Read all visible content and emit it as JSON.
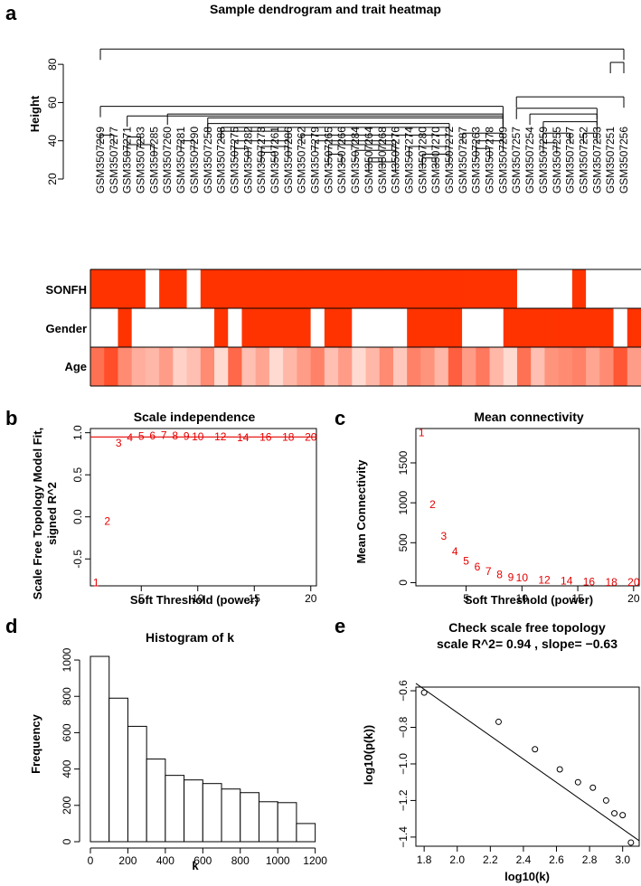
{
  "colors": {
    "red": "#ff3300",
    "line_red": "#e60000",
    "black": "#000000"
  },
  "chart_data": [
    {
      "panel": "a",
      "type": "dendrogram_heatmap",
      "title": "Sample dendrogram and trait heatmap",
      "ylabel": "Height",
      "yticks": [
        20,
        40,
        60,
        80
      ],
      "ylim": [
        20,
        90
      ],
      "leaves": [
        "GSM3507269",
        "GSM3507277",
        "GSM3507271",
        "GSM3507283",
        "GSM3507285",
        "GSM3507260",
        "GSM3507281",
        "GSM3507290",
        "GSM3507258",
        "GSM3507288",
        "GSM3507275",
        "GSM3507282",
        "GSM3507273",
        "GSM3507261",
        "GSM3507286",
        "GSM3507262",
        "GSM3507279",
        "GSM3507265",
        "GSM3507266",
        "GSM3507284",
        "GSM3507264",
        "GSM3507268",
        "GSM3507276",
        "GSM3507274",
        "GSM3507280",
        "GSM3507270",
        "GSM3507272",
        "GSM3507287",
        "GSM3507263",
        "GSM3507278",
        "GSM3507289",
        "GSM3507257",
        "GSM3507254",
        "GSM3507259",
        "GSM3507255",
        "GSM3507267",
        "GSM3507252",
        "GSM3507253",
        "GSM3507251",
        "GSM3507256"
      ],
      "traits": [
        {
          "name": "SONFH",
          "values": [
            1,
            1,
            1,
            1,
            0,
            1,
            1,
            0,
            1,
            1,
            1,
            1,
            1,
            1,
            1,
            1,
            1,
            1,
            1,
            1,
            1,
            1,
            1,
            1,
            1,
            1,
            1,
            1,
            1,
            1,
            1,
            0,
            0,
            0,
            0,
            1,
            0,
            0,
            0,
            0
          ]
        },
        {
          "name": "Gender",
          "values": [
            0,
            0,
            1,
            0,
            0,
            0,
            0,
            0,
            0,
            1,
            0,
            1,
            1,
            1,
            1,
            1,
            0,
            1,
            1,
            0,
            0,
            0,
            0,
            1,
            1,
            1,
            1,
            0,
            0,
            0,
            1,
            1,
            1,
            1,
            1,
            1,
            1,
            1,
            0,
            1
          ]
        },
        {
          "name": "Age",
          "values": [
            0.7,
            0.9,
            0.55,
            0.35,
            0.3,
            0.45,
            0.15,
            0.25,
            0.55,
            0.1,
            0.75,
            0.25,
            0.4,
            0.1,
            0.3,
            0.45,
            0.6,
            0.25,
            0.45,
            0.1,
            0.3,
            0.55,
            0.2,
            0.6,
            0.5,
            0.3,
            0.8,
            0.45,
            0.65,
            0.3,
            0.1,
            0.7,
            0.25,
            0.5,
            0.55,
            0.6,
            0.4,
            0.55,
            0.85,
            0.45
          ]
        }
      ]
    },
    {
      "panel": "b",
      "type": "scatter",
      "title": "Scale independence",
      "xlabel": "Soft Threshold (power)",
      "ylabel": "Scale Free Topology Model Fit, signed R^2",
      "xlim": [
        0.5,
        20.5
      ],
      "ylim": [
        -0.82,
        1.05
      ],
      "xticks": [
        5,
        10,
        15,
        20
      ],
      "yticks": [
        -0.5,
        0.0,
        0.5,
        1.0
      ],
      "hline": 0.95,
      "x": [
        1,
        2,
        3,
        4,
        5,
        6,
        7,
        8,
        9,
        10,
        12,
        14,
        16,
        18,
        20
      ],
      "y": [
        -0.78,
        -0.05,
        0.88,
        0.94,
        0.96,
        0.965,
        0.97,
        0.965,
        0.96,
        0.955,
        0.955,
        0.945,
        0.95,
        0.95,
        0.95
      ]
    },
    {
      "panel": "c",
      "type": "scatter",
      "title": "Mean connectivity",
      "xlabel": "Soft Threshold (power)",
      "ylabel": "Mean Connectivity",
      "xlim": [
        0.5,
        20.5
      ],
      "ylim": [
        -40,
        1930
      ],
      "xticks": [
        5,
        10,
        15,
        20
      ],
      "yticks": [
        0,
        500,
        1000,
        1500
      ],
      "x": [
        1,
        2,
        3,
        4,
        5,
        6,
        7,
        8,
        9,
        10,
        12,
        14,
        16,
        18,
        20
      ],
      "y": [
        1880,
        980,
        580,
        390,
        270,
        195,
        140,
        100,
        70,
        60,
        35,
        20,
        12,
        8,
        4
      ]
    },
    {
      "panel": "d",
      "type": "bar",
      "title": "Histogram of k",
      "xlabel": "k",
      "ylabel": "Frequency",
      "xlim": [
        0,
        1250
      ],
      "ylim": [
        0,
        1050
      ],
      "xticks": [
        0,
        200,
        400,
        600,
        800,
        1000,
        1200
      ],
      "yticks": [
        0,
        200,
        400,
        600,
        800,
        1000
      ],
      "bin_width": 100,
      "bin_starts": [
        0,
        100,
        200,
        300,
        400,
        500,
        600,
        700,
        800,
        900,
        1000,
        1100
      ],
      "values": [
        1020,
        790,
        635,
        455,
        365,
        340,
        320,
        290,
        270,
        220,
        215,
        100
      ]
    },
    {
      "panel": "e",
      "type": "scatter",
      "title": "Check scale free topology",
      "subtitle": "scale R^2= 0.94 , slope= −0.63",
      "xlabel": "log10(k)",
      "ylabel": "log10(p(k))",
      "xlim": [
        1.75,
        3.1
      ],
      "ylim": [
        -1.45,
        -0.58
      ],
      "xticks": [
        1.8,
        2.0,
        2.2,
        2.4,
        2.6,
        2.8,
        3.0
      ],
      "yticks": [
        -0.6,
        -0.8,
        -1.0,
        -1.2,
        -1.4
      ],
      "x": [
        1.8,
        2.25,
        2.47,
        2.62,
        2.73,
        2.82,
        2.9,
        2.95,
        3.0,
        3.05
      ],
      "y": [
        -0.61,
        -0.77,
        -0.92,
        -1.03,
        -1.1,
        -1.13,
        -1.2,
        -1.27,
        -1.28,
        -1.43
      ],
      "fit_line": {
        "x": [
          1.75,
          3.1
        ],
        "y": [
          -0.56,
          -1.42
        ]
      }
    }
  ],
  "panel_letters": [
    "a",
    "b",
    "c",
    "d",
    "e"
  ]
}
